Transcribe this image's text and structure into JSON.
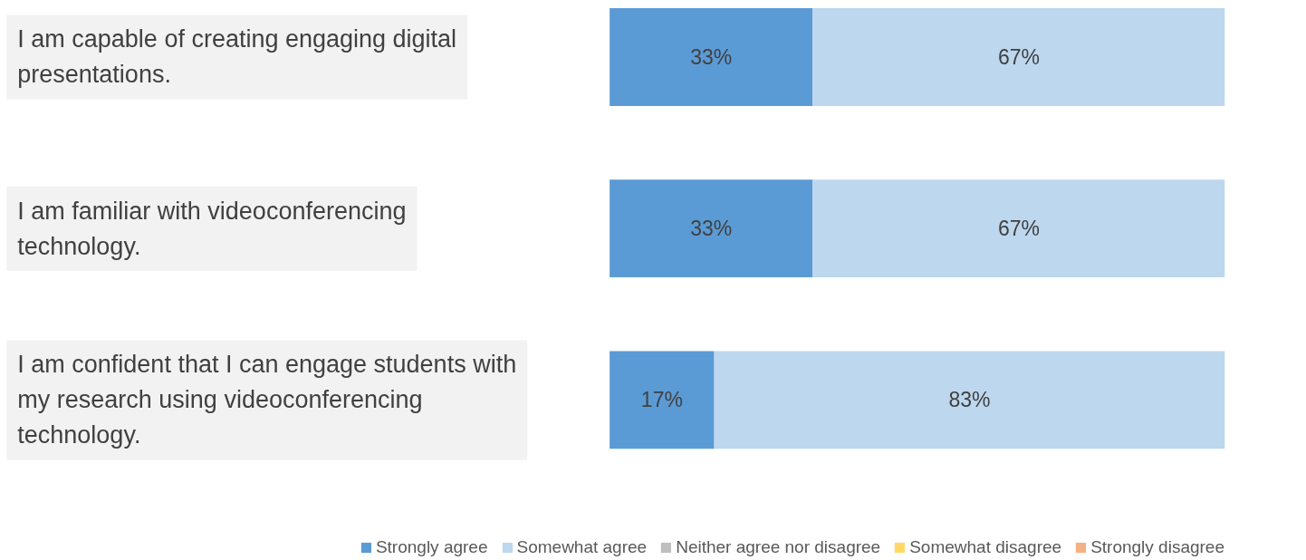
{
  "chart_data": {
    "type": "bar",
    "orientation": "horizontal",
    "stacked": true,
    "categories": [
      "I am capable of creating engaging digital presentations.",
      "I am familiar with videoconferencing technology.",
      "I am confident that I can engage students with my research using videoconferencing technology."
    ],
    "series": [
      {
        "name": "Strongly agree",
        "color": "#5b9bd5",
        "values": [
          33,
          33,
          17
        ],
        "value_labels": [
          "33%",
          "33%",
          "17%"
        ]
      },
      {
        "name": "Somewhat agree",
        "color": "#bdd7ee",
        "values": [
          67,
          67,
          83
        ],
        "value_labels": [
          "67%",
          "67%",
          "83%"
        ]
      },
      {
        "name": "Neither agree nor disagree",
        "color": "#bfbfbf",
        "values": [
          null,
          null,
          null
        ]
      },
      {
        "name": "Somewhat disagree",
        "color": "#ffd966",
        "values": [
          null,
          null,
          null
        ]
      },
      {
        "name": "Strongly disagree",
        "color": "#f4b183",
        "values": [
          null,
          null,
          null
        ]
      }
    ],
    "tick_labels": "y",
    "grid": false,
    "legend": "bottom"
  }
}
